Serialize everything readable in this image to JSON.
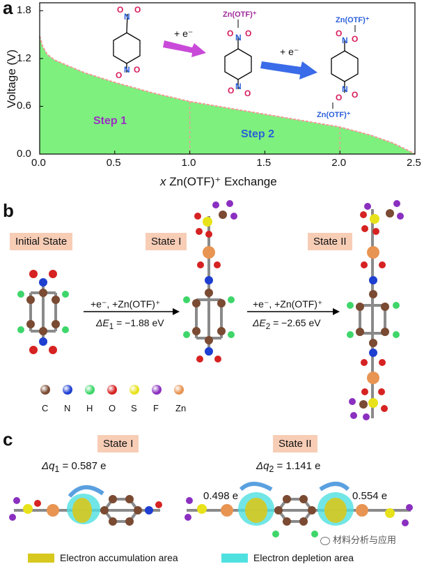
{
  "panel_a": {
    "label": "a",
    "ylabel": "Voltage (V)",
    "xlabel_pre": "x",
    "xlabel_post": " Zn(OTF)⁺ Exchange",
    "xticks": [
      "0.0",
      "0.5",
      "1.0",
      "1.5",
      "2.0",
      "2.5"
    ],
    "yticks": [
      "0.0",
      "0.6",
      "1.2",
      "1.8"
    ],
    "step1": "Step 1",
    "step2": "Step 2",
    "arrow1_label": "+ e⁻",
    "arrow2_label": "+ e⁻",
    "zn_label_1": "Zn(OTF)⁺",
    "zn_label_2a": "Zn(OTF)⁺",
    "zn_label_2b": "Zn(OTF)⁺",
    "colors": {
      "fill": "#7ef07e",
      "curve": "#f29a9a",
      "step1": "#9b2fc2",
      "step2": "#2a5fd9"
    }
  },
  "chart_data": {
    "type": "area",
    "xlabel": "x Zn(OTF)⁺ Exchange",
    "ylabel": "Voltage (V)",
    "xlim": [
      0,
      2.5
    ],
    "ylim": [
      0,
      1.9
    ],
    "x": [
      0.0,
      0.02,
      0.05,
      0.1,
      0.2,
      0.3,
      0.5,
      0.75,
      1.0,
      1.25,
      1.5,
      1.75,
      2.0,
      2.2,
      2.35,
      2.45,
      2.5
    ],
    "series": [
      {
        "values": [
          1.48,
          1.35,
          1.25,
          1.18,
          1.1,
          1.02,
          0.9,
          0.77,
          0.66,
          0.58,
          0.5,
          0.42,
          0.34,
          0.24,
          0.14,
          0.05,
          0.0
        ]
      }
    ],
    "markers_x": [
      1.0,
      2.0
    ]
  },
  "panel_b": {
    "label": "b",
    "initial": "Initial State",
    "state1": "State I",
    "state2": "State II",
    "eq1_top": "+e⁻, +Zn(OTF)⁺",
    "eq1_bottom_pre": "ΔE",
    "eq1_sub": "1",
    "eq1_bottom_post": " = −1.88 eV",
    "eq2_top": "+e⁻, +Zn(OTF)⁺",
    "eq2_bottom_pre": "ΔE",
    "eq2_sub": "2",
    "eq2_bottom_post": " = −2.65 eV",
    "legend": [
      {
        "label": "C",
        "color": "#7a4a32"
      },
      {
        "label": "N",
        "color": "#1f3fd1"
      },
      {
        "label": "H",
        "color": "#3ed66a"
      },
      {
        "label": "O",
        "color": "#d62222"
      },
      {
        "label": "S",
        "color": "#e8e21a"
      },
      {
        "label": "F",
        "color": "#8a2fc0"
      },
      {
        "label": "Zn",
        "color": "#e89452"
      }
    ]
  },
  "panel_c": {
    "label": "c",
    "state1": "State I",
    "state2": "State II",
    "dq1_pre": "Δq",
    "dq1_sub": "1",
    "dq1_post": " = 0.587 e",
    "dq2_pre": "Δq",
    "dq2_sub": "2",
    "dq2_post": " = 1.141 e",
    "left_val": "0.498 e",
    "right_val": "0.554 e",
    "legend_accum": "Electron accumulation area",
    "legend_depl": "Electron depletion area",
    "watermark": "材料分析与应用",
    "colors": {
      "accum": "#d7c81e",
      "depl": "#4fe0e0"
    }
  }
}
